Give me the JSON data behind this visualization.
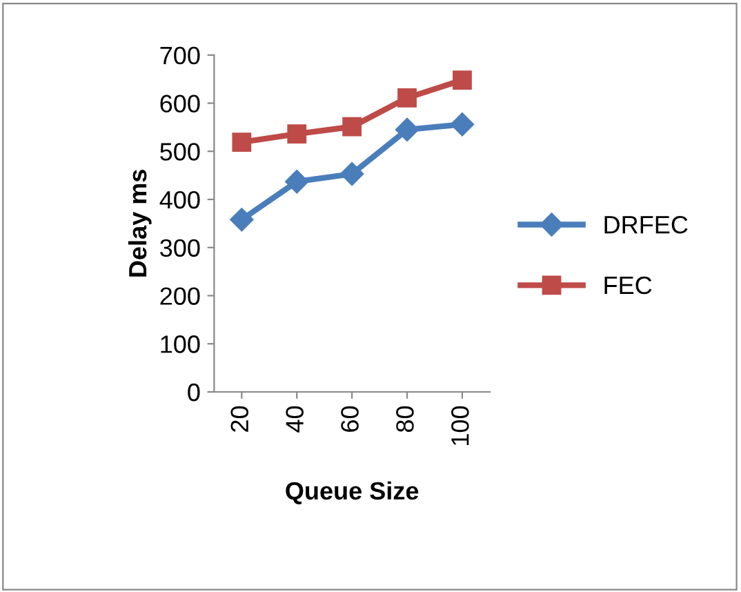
{
  "chart_data": {
    "type": "line",
    "xlabel": "Queue Size",
    "ylabel": "Delay ms",
    "categories": [
      "20",
      "40",
      "60",
      "80",
      "100"
    ],
    "series": [
      {
        "name": "DRFEC",
        "color": "#4a7ebb",
        "marker": "diamond",
        "values": [
          358,
          437,
          453,
          545,
          556
        ]
      },
      {
        "name": "FEC",
        "color": "#be4b48",
        "marker": "square",
        "values": [
          519,
          536,
          551,
          611,
          648
        ]
      }
    ],
    "ylim": [
      0,
      700
    ],
    "yticks": [
      0,
      100,
      200,
      300,
      400,
      500,
      600,
      700
    ],
    "grid": false,
    "legend": "right",
    "line_style": "solid"
  }
}
